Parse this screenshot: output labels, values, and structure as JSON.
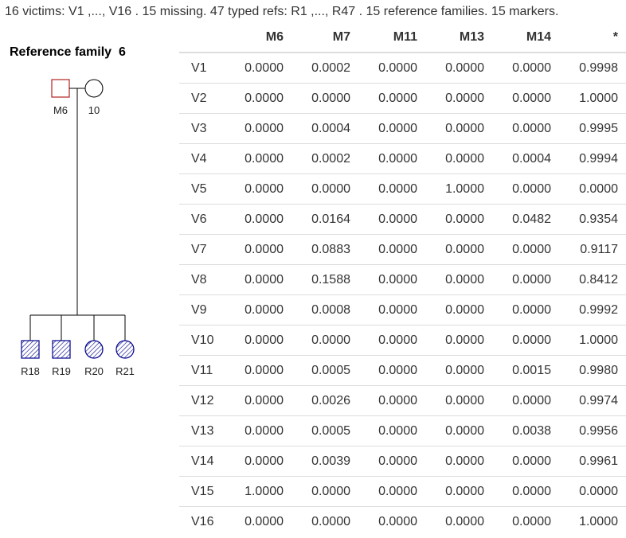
{
  "summary": "16 victims: V1 ,..., V16 . 15 missing. 47 typed refs: R1 ,..., R47 . 15 reference families. 15 markers.",
  "family_title": "Reference family  6",
  "pedigree": {
    "father_label": "M6",
    "mother_label": "10",
    "children": [
      {
        "label": "R18",
        "sex": "male"
      },
      {
        "label": "R19",
        "sex": "male"
      },
      {
        "label": "R20",
        "sex": "female"
      },
      {
        "label": "R21",
        "sex": "female"
      }
    ],
    "missing_color": "#b22222",
    "typed_color": "#00008b"
  },
  "table": {
    "columns": [
      "",
      "M6",
      "M7",
      "M11",
      "M13",
      "M14",
      "*"
    ],
    "rows": [
      [
        "V1",
        "0.0000",
        "0.0002",
        "0.0000",
        "0.0000",
        "0.0000",
        "0.9998"
      ],
      [
        "V2",
        "0.0000",
        "0.0000",
        "0.0000",
        "0.0000",
        "0.0000",
        "1.0000"
      ],
      [
        "V3",
        "0.0000",
        "0.0004",
        "0.0000",
        "0.0000",
        "0.0000",
        "0.9995"
      ],
      [
        "V4",
        "0.0000",
        "0.0002",
        "0.0000",
        "0.0000",
        "0.0004",
        "0.9994"
      ],
      [
        "V5",
        "0.0000",
        "0.0000",
        "0.0000",
        "1.0000",
        "0.0000",
        "0.0000"
      ],
      [
        "V6",
        "0.0000",
        "0.0164",
        "0.0000",
        "0.0000",
        "0.0482",
        "0.9354"
      ],
      [
        "V7",
        "0.0000",
        "0.0883",
        "0.0000",
        "0.0000",
        "0.0000",
        "0.9117"
      ],
      [
        "V8",
        "0.0000",
        "0.1588",
        "0.0000",
        "0.0000",
        "0.0000",
        "0.8412"
      ],
      [
        "V9",
        "0.0000",
        "0.0008",
        "0.0000",
        "0.0000",
        "0.0000",
        "0.9992"
      ],
      [
        "V10",
        "0.0000",
        "0.0000",
        "0.0000",
        "0.0000",
        "0.0000",
        "1.0000"
      ],
      [
        "V11",
        "0.0000",
        "0.0005",
        "0.0000",
        "0.0000",
        "0.0015",
        "0.9980"
      ],
      [
        "V12",
        "0.0000",
        "0.0026",
        "0.0000",
        "0.0000",
        "0.0000",
        "0.9974"
      ],
      [
        "V13",
        "0.0000",
        "0.0005",
        "0.0000",
        "0.0000",
        "0.0038",
        "0.9956"
      ],
      [
        "V14",
        "0.0000",
        "0.0039",
        "0.0000",
        "0.0000",
        "0.0000",
        "0.9961"
      ],
      [
        "V15",
        "1.0000",
        "0.0000",
        "0.0000",
        "0.0000",
        "0.0000",
        "0.0000"
      ],
      [
        "V16",
        "0.0000",
        "0.0000",
        "0.0000",
        "0.0000",
        "0.0000",
        "1.0000"
      ]
    ]
  }
}
